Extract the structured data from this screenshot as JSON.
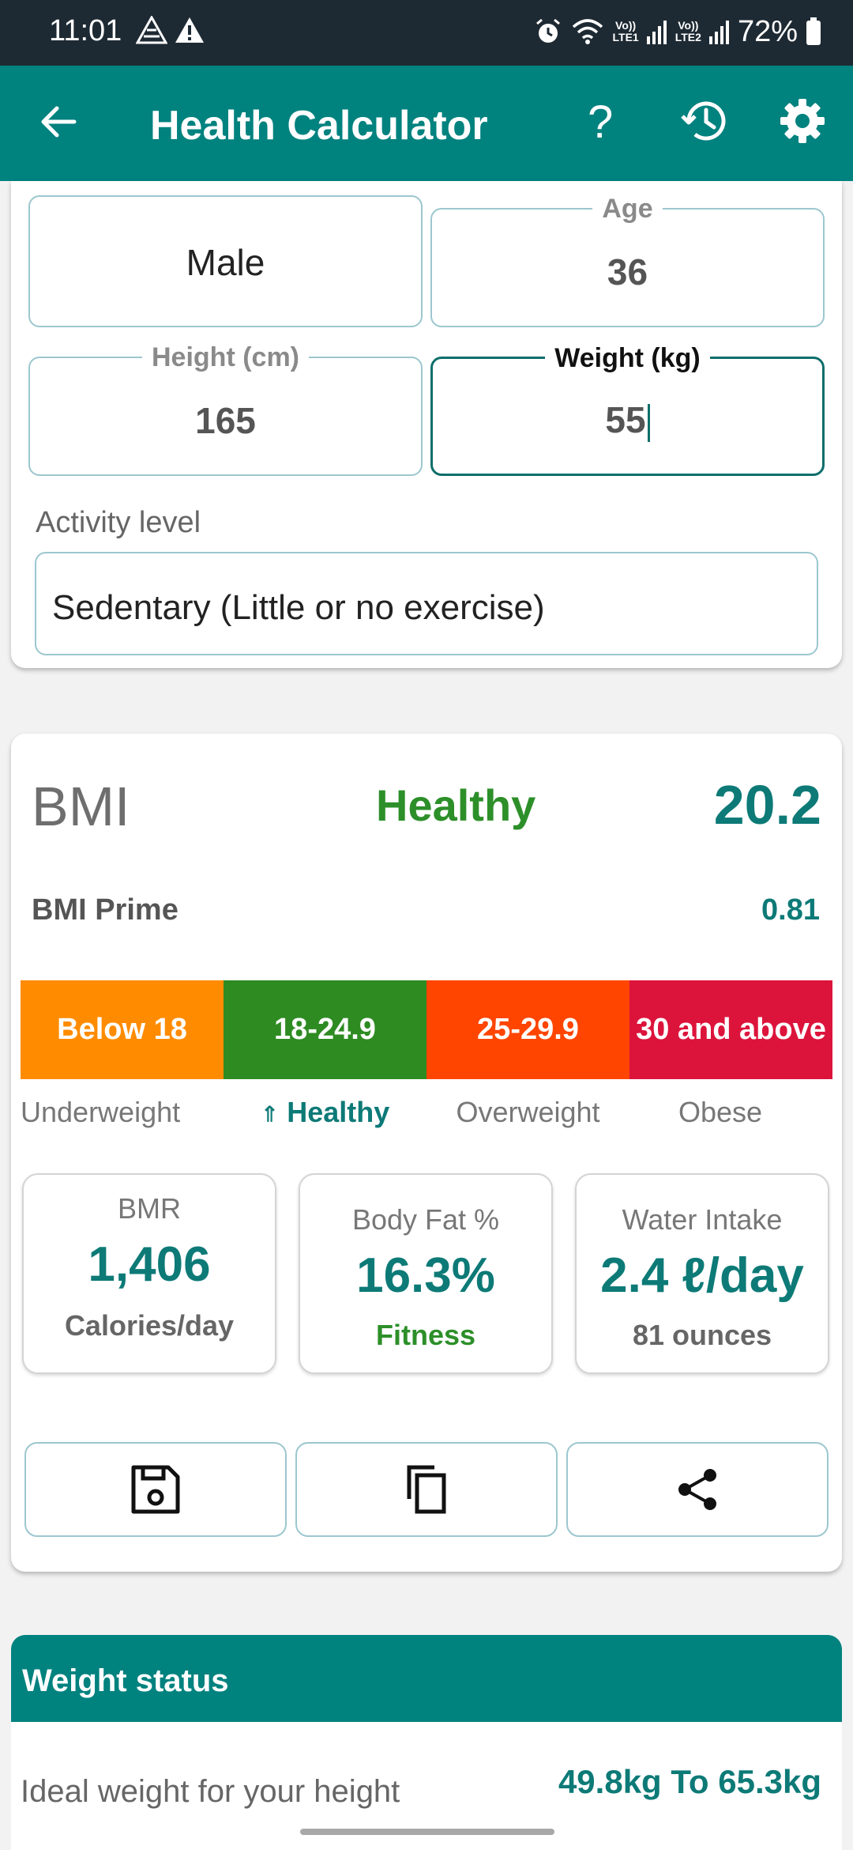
{
  "status_bar": {
    "time": "11:01",
    "battery": "72%",
    "sim1": [
      "Vo))",
      "LTE1"
    ],
    "sim2": [
      "Vo))",
      "LTE2"
    ]
  },
  "app_bar": {
    "title": "Health Calculator",
    "help": "?"
  },
  "inputs": {
    "gender": "Male",
    "age_label": "Age",
    "age_value": "36",
    "height_label": "Height (cm)",
    "height_value": "165",
    "weight_label": "Weight (kg)",
    "weight_value": "55",
    "activity_label": "Activity level",
    "activity_value": "Sedentary (Little or no exercise)"
  },
  "bmi": {
    "title": "BMI",
    "status": "Healthy",
    "value": "20.2",
    "prime_label": "BMI Prime",
    "prime_value": "0.81",
    "ranges": [
      {
        "label": "Below 18",
        "color": "#ff8c00"
      },
      {
        "label": "18-24.9",
        "color": "#2e8b22"
      },
      {
        "label": "25-29.9",
        "color": "#ff4500"
      },
      {
        "label": "30 and above",
        "color": "#dc143c"
      }
    ],
    "categories": [
      "Underweight",
      "Healthy",
      "Overweight",
      "Obese"
    ],
    "indicator_arrow": "⇑"
  },
  "stats": {
    "bmr_title": "BMR",
    "bmr_value": "1,406",
    "bmr_sub": "Calories/day",
    "fat_title": "Body Fat %",
    "fat_value": "16.3%",
    "fat_sub": "Fitness",
    "water_title": "Water Intake",
    "water_value": "2.4 ℓ/day",
    "water_sub": "81 ounces"
  },
  "actions": {
    "save_icon": "save-icon",
    "copy_icon": "copy-icon",
    "share_icon": "share-icon"
  },
  "weight_status": {
    "header": "Weight status",
    "ideal_label": "Ideal weight for your height",
    "ideal_value": "49.8kg To 65.3kg"
  },
  "colors": {
    "primary": "#00827f",
    "healthy_green": "#2d8f29",
    "teal_text": "#0d7a77"
  }
}
